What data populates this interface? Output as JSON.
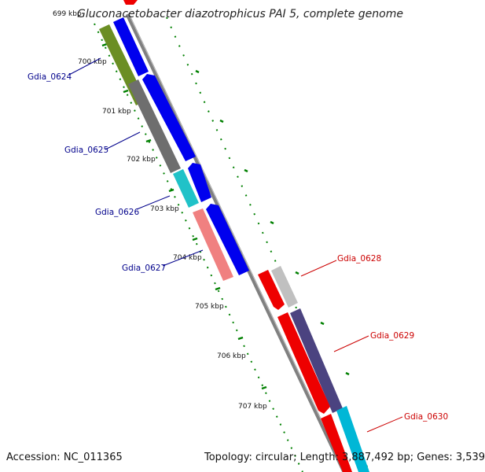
{
  "header": {
    "title": "Gluconacetobacter diazotrophicus PAI 5, complete genome"
  },
  "footer": {
    "accession": "Accession: NC_011365",
    "stats": "Topology: circular; Length: 3,887,492 bp; Genes: 3,539"
  },
  "scale_labels": [
    "699 kbp",
    "700 kbp",
    "701 kbp",
    "702 kbp",
    "703 kbp",
    "704 kbp",
    "705 kbp",
    "706 kbp",
    "707 kbp"
  ],
  "genes_left": [
    {
      "label": "Gdia_0624",
      "color": "#00008b",
      "feature_color": "#6b8e23"
    },
    {
      "label": "Gdia_0625",
      "color": "#00008b",
      "feature_color": "#6e6e6e"
    },
    {
      "label": "Gdia_0626",
      "color": "#00008b",
      "feature_color": "#20c2c8"
    },
    {
      "label": "Gdia_0627",
      "color": "#00008b",
      "feature_color": "#f08080"
    }
  ],
  "genes_right": [
    {
      "label": "Gdia_0628",
      "color": "#cc0000",
      "feature_color": "#c0c0c0"
    },
    {
      "label": "Gdia_0629",
      "color": "#cc0000",
      "feature_color": "#4b4380"
    },
    {
      "label": "Gdia_0630",
      "color": "#cc0000",
      "feature_color": "#00b7d6"
    }
  ],
  "colors": {
    "backbone": "#808080",
    "cds_forward": "#0000ee",
    "cds_reverse": "#ee0000",
    "tick": "#008000"
  }
}
